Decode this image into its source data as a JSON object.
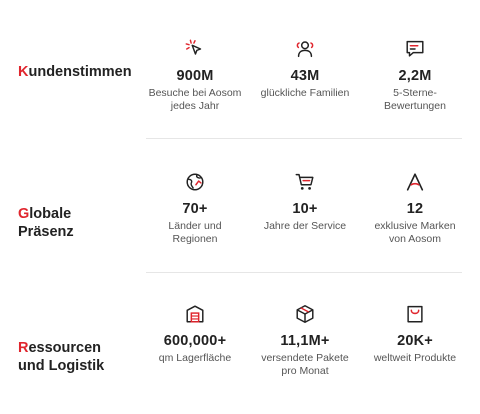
{
  "accent_color": "#e0262e",
  "sections": [
    {
      "title_first": "K",
      "title_rest": "undenstimmen",
      "stats": [
        {
          "icon": "cursor-click-icon",
          "value": "900M",
          "desc": "Besuche bei Aosom\njedes Jahr"
        },
        {
          "icon": "users-icon",
          "value": "43M",
          "desc": "glückliche Familien"
        },
        {
          "icon": "review-chat-icon",
          "value": "2,2M",
          "desc": "5-Sterne-\nBewertungen"
        }
      ]
    },
    {
      "title_first": "G",
      "title_rest": "lobale\nPräsenz",
      "stats": [
        {
          "icon": "globe-icon",
          "value": "70+",
          "desc": "Länder und\nRegionen"
        },
        {
          "icon": "shopping-cart-icon",
          "value": "10+",
          "desc": "Jahre der Service"
        },
        {
          "icon": "brand-a-icon",
          "value": "12",
          "desc": "exklusive Marken\nvon Aosom"
        }
      ]
    },
    {
      "title_first": "R",
      "title_rest": "essourcen\nund Logistik",
      "stats": [
        {
          "icon": "warehouse-icon",
          "value": "600,000+",
          "desc": "qm Lagerfläche"
        },
        {
          "icon": "package-box-icon",
          "value": "11,1M+",
          "desc": "versendete Pakete\npro Monat"
        },
        {
          "icon": "shopping-bag-icon",
          "value": "20K+",
          "desc": "weltweit Produkte"
        }
      ]
    }
  ]
}
